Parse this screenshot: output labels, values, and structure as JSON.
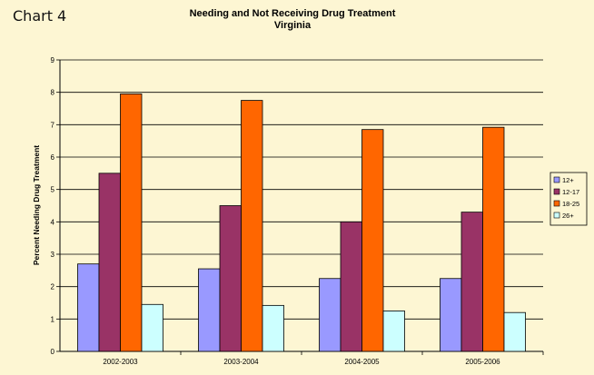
{
  "chart_label": "Chart 4",
  "chart_data": {
    "type": "bar",
    "title": "Needing and Not Receiving Drug Treatment",
    "subtitle": "Virginia",
    "xlabel": "",
    "ylabel": "Percent Needing Drug Treatment",
    "categories": [
      "2002-2003",
      "2003-2004",
      "2004-2005",
      "2005-2006"
    ],
    "ylim": [
      0,
      9
    ],
    "yticks": [
      0,
      1,
      2,
      3,
      4,
      5,
      6,
      7,
      8,
      9
    ],
    "grid": true,
    "legend_position": "right",
    "series": [
      {
        "name": "12+",
        "color": "#9999ff",
        "values": [
          2.7,
          2.55,
          2.25,
          2.25
        ]
      },
      {
        "name": "12-17",
        "color": "#993366",
        "values": [
          5.5,
          4.5,
          4.0,
          4.3
        ]
      },
      {
        "name": "18-25",
        "color": "#ff6600",
        "values": [
          7.95,
          7.75,
          6.85,
          6.92
        ]
      },
      {
        "name": "26+",
        "color": "#ccffff",
        "values": [
          1.45,
          1.42,
          1.25,
          1.2
        ]
      }
    ]
  }
}
